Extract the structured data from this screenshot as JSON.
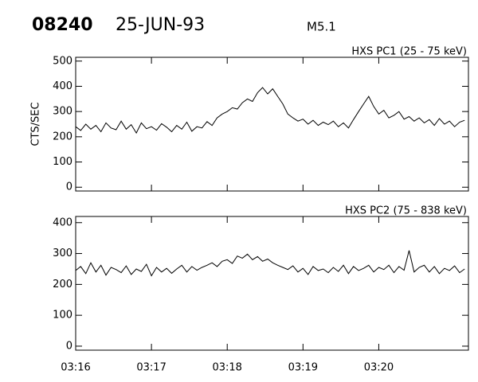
{
  "header": {
    "id": "08240",
    "date": "25-JUN-93",
    "class": "M5.1"
  },
  "chart_data": [
    {
      "type": "line",
      "title": "HXS PC1 (25 - 75 keV)",
      "ylabel": "CTS/SEC",
      "color": "#000000",
      "x": [
        0,
        4,
        8,
        12,
        16,
        20,
        24,
        28,
        32,
        36,
        40,
        44,
        48,
        52,
        56,
        60,
        64,
        68,
        72,
        76,
        80,
        84,
        88,
        92,
        96,
        100,
        104,
        108,
        112,
        116,
        120,
        124,
        128,
        132,
        136,
        140,
        144,
        148,
        152,
        156,
        160,
        164,
        168,
        172,
        176,
        180,
        184,
        188,
        192,
        196,
        200,
        204,
        208,
        212,
        216,
        220,
        224,
        228,
        232,
        236,
        240,
        244,
        248,
        252,
        256,
        260,
        264,
        268,
        272,
        276,
        280,
        284,
        288,
        292,
        296,
        300,
        304,
        308
      ],
      "values": [
        240,
        225,
        250,
        230,
        245,
        220,
        255,
        235,
        228,
        262,
        230,
        248,
        215,
        255,
        232,
        240,
        226,
        252,
        238,
        220,
        245,
        230,
        258,
        222,
        240,
        235,
        260,
        245,
        275,
        290,
        300,
        315,
        310,
        335,
        350,
        340,
        375,
        395,
        370,
        390,
        360,
        330,
        290,
        275,
        262,
        270,
        250,
        265,
        245,
        258,
        248,
        262,
        240,
        255,
        235,
        268,
        300,
        330,
        360,
        320,
        290,
        305,
        275,
        285,
        300,
        270,
        280,
        262,
        275,
        255,
        268,
        245,
        272,
        250,
        262,
        240,
        258,
        265
      ],
      "xlim": [
        0,
        311
      ],
      "ylim": [
        -15,
        515
      ],
      "yticks": [
        0,
        100,
        200,
        300,
        400,
        500
      ]
    },
    {
      "type": "line",
      "title": "HXS PC2 (75 - 838 keV)",
      "color": "#000000",
      "x": [
        0,
        4,
        8,
        12,
        16,
        20,
        24,
        28,
        32,
        36,
        40,
        44,
        48,
        52,
        56,
        60,
        64,
        68,
        72,
        76,
        80,
        84,
        88,
        92,
        96,
        100,
        104,
        108,
        112,
        116,
        120,
        124,
        128,
        132,
        136,
        140,
        144,
        148,
        152,
        156,
        160,
        164,
        168,
        172,
        176,
        180,
        184,
        188,
        192,
        196,
        200,
        204,
        208,
        212,
        216,
        220,
        224,
        228,
        232,
        236,
        240,
        244,
        248,
        252,
        256,
        260,
        264,
        268,
        272,
        276,
        280,
        284,
        288,
        292,
        296,
        300,
        304,
        308
      ],
      "values": [
        245,
        258,
        235,
        270,
        240,
        262,
        230,
        255,
        248,
        238,
        260,
        232,
        250,
        242,
        265,
        228,
        255,
        240,
        252,
        236,
        250,
        262,
        240,
        258,
        246,
        255,
        262,
        270,
        258,
        275,
        280,
        268,
        292,
        285,
        298,
        280,
        290,
        275,
        282,
        270,
        262,
        255,
        248,
        260,
        240,
        252,
        232,
        258,
        245,
        250,
        238,
        255,
        242,
        262,
        235,
        258,
        245,
        252,
        262,
        240,
        255,
        248,
        262,
        238,
        258,
        246,
        310,
        240,
        255,
        262,
        240,
        258,
        235,
        252,
        245,
        260,
        238,
        250
      ],
      "xlim": [
        0,
        311
      ],
      "ylim": [
        -13,
        420
      ],
      "yticks": [
        0,
        100,
        200,
        300,
        400
      ],
      "xticks": [
        {
          "value": 0,
          "label": "03:16"
        },
        {
          "value": 60,
          "label": "03:17"
        },
        {
          "value": 120,
          "label": "03:18"
        },
        {
          "value": 180,
          "label": "03:19"
        },
        {
          "value": 240,
          "label": "03:20"
        }
      ]
    }
  ]
}
